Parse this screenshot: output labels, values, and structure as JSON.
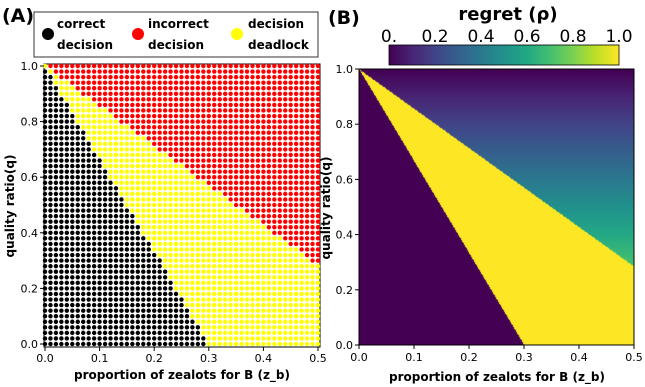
{
  "chart_data": [
    {
      "panel_label": "(A)",
      "type": "scatter",
      "title": "",
      "xlabel": "proportion of zealots for B (z_b)",
      "ylabel": "quality ratio(q)",
      "xlim": [
        0.0,
        0.5
      ],
      "ylim": [
        0.0,
        1.0
      ],
      "xticks": [
        "0.0",
        "0.1",
        "0.2",
        "0.3",
        "0.4",
        "0.5"
      ],
      "yticks": [
        "0.0",
        "0.2",
        "0.4",
        "0.6",
        "0.8",
        "1.0"
      ],
      "grid": false,
      "legend_placement": "top",
      "grid_points": {
        "x_step": 0.01,
        "y_step": 0.02
      },
      "series": [
        {
          "name": "correct decision",
          "color": "#000000",
          "region": "q < 1 - z_b / 0.3"
        },
        {
          "name": "incorrect decision",
          "color": "#ff0000",
          "region": "q > 1 - 1.43 * z_b"
        },
        {
          "name": "decision deadlock",
          "color": "#ffff00",
          "region": "between the other two regions"
        }
      ],
      "boundaries": [
        {
          "between": [
            "correct decision",
            "decision deadlock"
          ],
          "points": [
            [
              0.0,
              1.0
            ],
            [
              0.3,
              0.0
            ]
          ]
        },
        {
          "between": [
            "decision deadlock",
            "incorrect decision"
          ],
          "points": [
            [
              0.0,
              1.0
            ],
            [
              0.5,
              0.3
            ]
          ]
        }
      ]
    },
    {
      "panel_label": "(B)",
      "type": "heatmap",
      "title": "",
      "xlabel": "proportion of zealots for B (z_b)",
      "ylabel": "quality ratio(q)",
      "xlim": [
        0.0,
        0.5
      ],
      "ylim": [
        0.0,
        1.0
      ],
      "xticks": [
        "0.0",
        "0.1",
        "0.2",
        "0.3",
        "0.4",
        "0.5"
      ],
      "yticks": [
        "0.0",
        "0.2",
        "0.4",
        "0.6",
        "0.8",
        "1.0"
      ],
      "colorbar": {
        "label": "regret (ρ)",
        "ticks": [
          "0.",
          "0.2",
          "0.4",
          "0.6",
          "0.8",
          "1.0"
        ],
        "range": [
          0.0,
          1.0
        ],
        "colormap": "viridis"
      },
      "regions": [
        {
          "name": "correct decision",
          "regret": 0.0
        },
        {
          "name": "decision deadlock",
          "regret": 1.0
        },
        {
          "name": "incorrect decision",
          "regret": "1 - q"
        }
      ]
    }
  ],
  "legend": {
    "items": [
      {
        "line1": "correct",
        "line2": "decision",
        "color": "#000000"
      },
      {
        "line1": "incorrect",
        "line2": "decision",
        "color": "#ff0000"
      },
      {
        "line1": "decision",
        "line2": "deadlock",
        "color": "#ffff00"
      }
    ]
  },
  "colors": {
    "correct": "#000000",
    "incorrect": "#ff0000",
    "deadlock": "#ffff00",
    "heat_low": "#440154",
    "heat_high": "#fde725"
  }
}
